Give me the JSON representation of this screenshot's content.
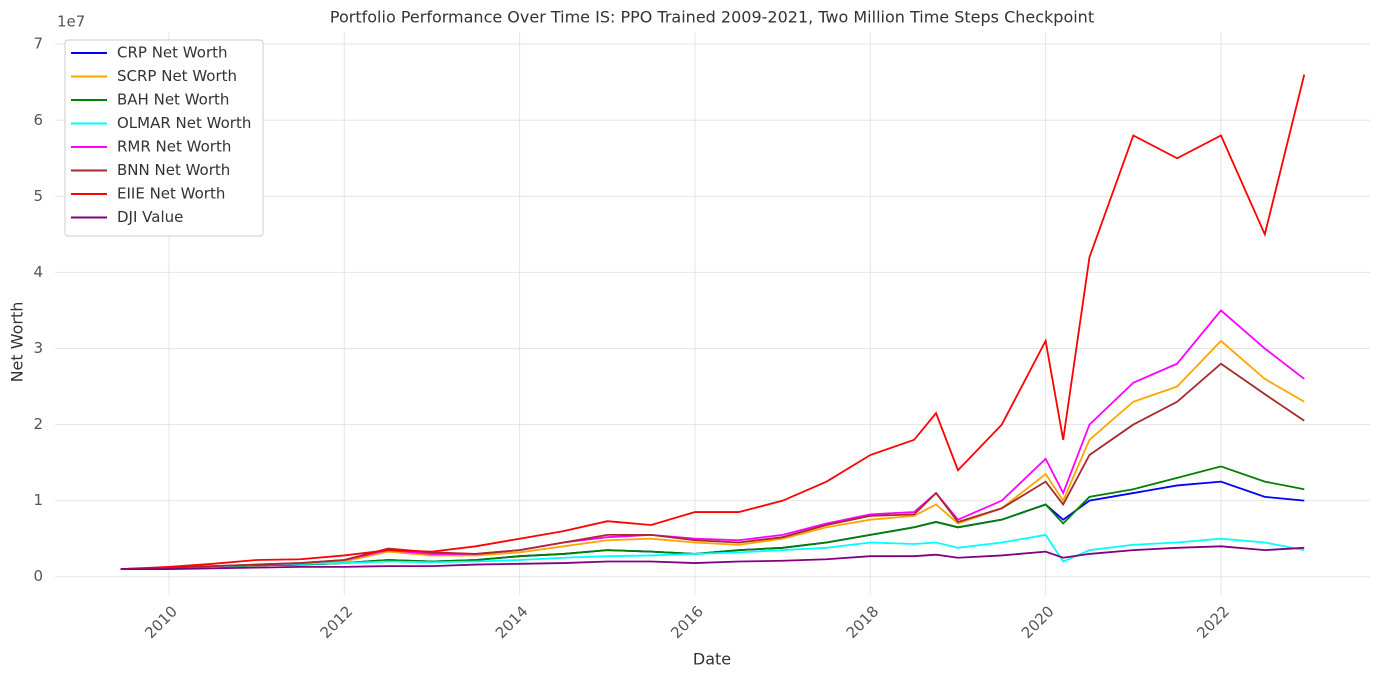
{
  "chart_data": {
    "type": "line",
    "title": "Portfolio Performance Over Time IS: PPO Trained 2009-2021, Two Million Time Steps Checkpoint",
    "x_label": "Date",
    "y_label": "Net Worth",
    "y_offset_label": "1e7",
    "x": [
      2009.45,
      2010,
      2010.5,
      2011,
      2011.5,
      2012,
      2012.5,
      2013,
      2013.5,
      2014,
      2014.5,
      2015,
      2015.5,
      2016,
      2016.5,
      2017,
      2017.5,
      2018,
      2018.5,
      2018.75,
      2019,
      2019.5,
      2020,
      2020.2,
      2020.5,
      2021,
      2021.5,
      2022,
      2022.5,
      2022.95
    ],
    "series": [
      {
        "name": "CRP Net Worth",
        "color": "#0000ff",
        "values": [
          0.1,
          0.11,
          0.13,
          0.15,
          0.16,
          0.18,
          0.22,
          0.2,
          0.22,
          0.27,
          0.3,
          0.35,
          0.33,
          0.3,
          0.35,
          0.38,
          0.45,
          0.55,
          0.65,
          0.72,
          0.65,
          0.75,
          0.95,
          0.75,
          1.0,
          1.1,
          1.2,
          1.25,
          1.05,
          1.0
        ]
      },
      {
        "name": "SCRP Net Worth",
        "color": "#ffa500",
        "values": [
          0.1,
          0.11,
          0.13,
          0.15,
          0.16,
          0.2,
          0.33,
          0.28,
          0.28,
          0.32,
          0.4,
          0.48,
          0.5,
          0.45,
          0.42,
          0.5,
          0.65,
          0.75,
          0.8,
          0.95,
          0.7,
          0.9,
          1.35,
          1.0,
          1.8,
          2.3,
          2.5,
          3.1,
          2.6,
          2.3
        ]
      },
      {
        "name": "BAH Net Worth",
        "color": "#008000",
        "values": [
          0.1,
          0.11,
          0.13,
          0.15,
          0.16,
          0.18,
          0.22,
          0.2,
          0.22,
          0.27,
          0.3,
          0.35,
          0.33,
          0.3,
          0.35,
          0.38,
          0.45,
          0.55,
          0.65,
          0.72,
          0.65,
          0.75,
          0.95,
          0.7,
          1.05,
          1.15,
          1.3,
          1.45,
          1.25,
          1.15
        ]
      },
      {
        "name": "OLMAR Net Worth",
        "color": "#00ffff",
        "values": [
          0.1,
          0.12,
          0.13,
          0.16,
          0.17,
          0.18,
          0.2,
          0.19,
          0.2,
          0.22,
          0.25,
          0.27,
          0.28,
          0.3,
          0.32,
          0.35,
          0.38,
          0.45,
          0.43,
          0.45,
          0.38,
          0.45,
          0.55,
          0.2,
          0.35,
          0.42,
          0.45,
          0.5,
          0.45,
          0.35
        ]
      },
      {
        "name": "RMR Net Worth",
        "color": "#ff00ff",
        "values": [
          0.1,
          0.12,
          0.14,
          0.16,
          0.18,
          0.22,
          0.35,
          0.3,
          0.3,
          0.35,
          0.45,
          0.52,
          0.55,
          0.5,
          0.48,
          0.55,
          0.7,
          0.82,
          0.85,
          1.1,
          0.75,
          1.0,
          1.55,
          1.1,
          2.0,
          2.55,
          2.8,
          3.5,
          3.0,
          2.6
        ]
      },
      {
        "name": "BNN Net Worth",
        "color": "#a52a2a",
        "values": [
          0.1,
          0.12,
          0.14,
          0.16,
          0.18,
          0.22,
          0.37,
          0.32,
          0.3,
          0.35,
          0.45,
          0.55,
          0.55,
          0.48,
          0.45,
          0.52,
          0.68,
          0.8,
          0.82,
          1.1,
          0.72,
          0.9,
          1.25,
          0.95,
          1.6,
          2.0,
          2.3,
          2.8,
          2.4,
          2.05
        ]
      },
      {
        "name": "EIIE Net Worth",
        "color": "#ff0000",
        "values": [
          0.1,
          0.13,
          0.17,
          0.22,
          0.23,
          0.28,
          0.35,
          0.33,
          0.4,
          0.5,
          0.6,
          0.73,
          0.68,
          0.85,
          0.85,
          1.0,
          1.25,
          1.6,
          1.8,
          2.15,
          1.4,
          2.0,
          3.1,
          1.8,
          4.2,
          5.8,
          5.5,
          5.8,
          4.5,
          6.6
        ]
      },
      {
        "name": "DJI Value",
        "color": "#800080",
        "values": [
          0.1,
          0.1,
          0.11,
          0.12,
          0.13,
          0.13,
          0.14,
          0.14,
          0.16,
          0.17,
          0.18,
          0.2,
          0.2,
          0.18,
          0.2,
          0.21,
          0.23,
          0.27,
          0.27,
          0.29,
          0.25,
          0.28,
          0.33,
          0.25,
          0.3,
          0.35,
          0.38,
          0.4,
          0.35,
          0.38
        ]
      }
    ],
    "xlim": [
      2008.7,
      2023.7
    ],
    "xticks": [
      2010,
      2012,
      2014,
      2016,
      2018,
      2020,
      2022
    ],
    "ylim": [
      -0.24,
      7.16
    ],
    "yticks": [
      0,
      1,
      2,
      3,
      4,
      5,
      6,
      7
    ],
    "grid": true,
    "legend": "upper left"
  }
}
